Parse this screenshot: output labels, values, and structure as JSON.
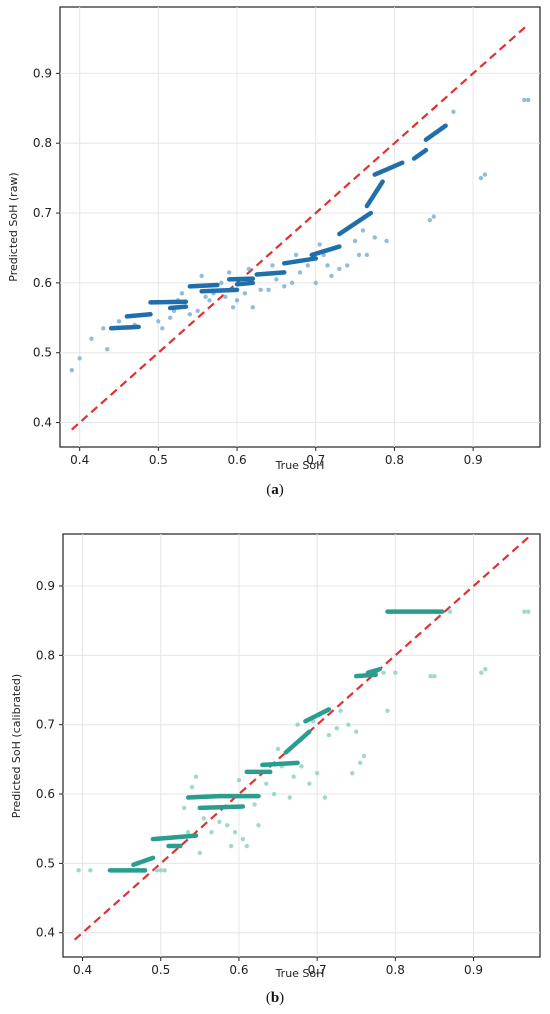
{
  "chart_data": [
    {
      "type": "scatter",
      "panel": "a",
      "caption_label": "a",
      "xlabel": "True SoH",
      "ylabel": "Predicted SoH (raw)",
      "xlim": [
        0.375,
        0.985
      ],
      "ylim": [
        0.365,
        0.995
      ],
      "xticks": [
        0.4,
        0.5,
        0.6,
        0.7,
        0.8,
        0.9
      ],
      "yticks": [
        0.4,
        0.5,
        0.6,
        0.7,
        0.8,
        0.9
      ],
      "grid": true,
      "point_color": "#1f6fad",
      "point_color_light": "#7fb0d6",
      "reference_line": {
        "color": "#e03030",
        "style": "dashed",
        "from": [
          0.39,
          0.39
        ],
        "to": [
          0.97,
          0.97
        ]
      },
      "trend_segments": [
        {
          "x": [
            0.44,
            0.475
          ],
          "y": [
            0.535,
            0.537
          ]
        },
        {
          "x": [
            0.46,
            0.49
          ],
          "y": [
            0.552,
            0.555
          ]
        },
        {
          "x": [
            0.49,
            0.535
          ],
          "y": [
            0.572,
            0.573
          ]
        },
        {
          "x": [
            0.515,
            0.535
          ],
          "y": [
            0.564,
            0.566
          ]
        },
        {
          "x": [
            0.54,
            0.575
          ],
          "y": [
            0.595,
            0.597
          ]
        },
        {
          "x": [
            0.555,
            0.6
          ],
          "y": [
            0.588,
            0.59
          ]
        },
        {
          "x": [
            0.59,
            0.62
          ],
          "y": [
            0.605,
            0.606
          ]
        },
        {
          "x": [
            0.6,
            0.62
          ],
          "y": [
            0.598,
            0.6
          ]
        },
        {
          "x": [
            0.625,
            0.66
          ],
          "y": [
            0.612,
            0.615
          ]
        },
        {
          "x": [
            0.66,
            0.7
          ],
          "y": [
            0.628,
            0.635
          ]
        },
        {
          "x": [
            0.695,
            0.73
          ],
          "y": [
            0.64,
            0.652
          ]
        },
        {
          "x": [
            0.73,
            0.77
          ],
          "y": [
            0.67,
            0.7
          ]
        },
        {
          "x": [
            0.765,
            0.785
          ],
          "y": [
            0.71,
            0.745
          ]
        },
        {
          "x": [
            0.775,
            0.81
          ],
          "y": [
            0.755,
            0.772
          ]
        },
        {
          "x": [
            0.825,
            0.84
          ],
          "y": [
            0.778,
            0.79
          ]
        },
        {
          "x": [
            0.84,
            0.865
          ],
          "y": [
            0.805,
            0.825
          ]
        }
      ],
      "points": [
        [
          0.39,
          0.475
        ],
        [
          0.4,
          0.492
        ],
        [
          0.415,
          0.52
        ],
        [
          0.43,
          0.535
        ],
        [
          0.435,
          0.505
        ],
        [
          0.45,
          0.545
        ],
        [
          0.47,
          0.54
        ],
        [
          0.5,
          0.545
        ],
        [
          0.505,
          0.535
        ],
        [
          0.515,
          0.55
        ],
        [
          0.52,
          0.56
        ],
        [
          0.525,
          0.575
        ],
        [
          0.53,
          0.585
        ],
        [
          0.54,
          0.555
        ],
        [
          0.55,
          0.56
        ],
        [
          0.555,
          0.61
        ],
        [
          0.56,
          0.58
        ],
        [
          0.565,
          0.575
        ],
        [
          0.57,
          0.585
        ],
        [
          0.58,
          0.6
        ],
        [
          0.585,
          0.58
        ],
        [
          0.59,
          0.615
        ],
        [
          0.595,
          0.565
        ],
        [
          0.6,
          0.575
        ],
        [
          0.61,
          0.585
        ],
        [
          0.615,
          0.62
        ],
        [
          0.62,
          0.565
        ],
        [
          0.63,
          0.59
        ],
        [
          0.64,
          0.59
        ],
        [
          0.645,
          0.625
        ],
        [
          0.65,
          0.605
        ],
        [
          0.66,
          0.595
        ],
        [
          0.67,
          0.6
        ],
        [
          0.675,
          0.64
        ],
        [
          0.68,
          0.615
        ],
        [
          0.69,
          0.625
        ],
        [
          0.7,
          0.6
        ],
        [
          0.705,
          0.655
        ],
        [
          0.71,
          0.64
        ],
        [
          0.715,
          0.625
        ],
        [
          0.72,
          0.61
        ],
        [
          0.73,
          0.62
        ],
        [
          0.74,
          0.625
        ],
        [
          0.75,
          0.66
        ],
        [
          0.755,
          0.64
        ],
        [
          0.76,
          0.675
        ],
        [
          0.765,
          0.64
        ],
        [
          0.775,
          0.665
        ],
        [
          0.79,
          0.66
        ],
        [
          0.845,
          0.69
        ],
        [
          0.85,
          0.695
        ],
        [
          0.875,
          0.845
        ],
        [
          0.91,
          0.75
        ],
        [
          0.915,
          0.755
        ],
        [
          0.965,
          0.862
        ],
        [
          0.97,
          0.862
        ]
      ]
    },
    {
      "type": "scatter",
      "panel": "b",
      "caption_label": "b",
      "xlabel": "True SoH",
      "ylabel": "Predicted SoH (calibrated)",
      "xlim": [
        0.375,
        0.985
      ],
      "ylim": [
        0.365,
        0.975
      ],
      "xticks": [
        0.4,
        0.5,
        0.6,
        0.7,
        0.8,
        0.9
      ],
      "yticks": [
        0.4,
        0.5,
        0.6,
        0.7,
        0.8,
        0.9
      ],
      "grid": true,
      "point_color": "#2a9d8f",
      "point_color_light": "#8fd0c6",
      "reference_line": {
        "color": "#e03030",
        "style": "dashed",
        "from": [
          0.39,
          0.39
        ],
        "to": [
          0.97,
          0.97
        ]
      },
      "trend_segments": [
        {
          "x": [
            0.435,
            0.48
          ],
          "y": [
            0.49,
            0.49
          ]
        },
        {
          "x": [
            0.465,
            0.49
          ],
          "y": [
            0.498,
            0.508
          ]
        },
        {
          "x": [
            0.49,
            0.545
          ],
          "y": [
            0.535,
            0.54
          ]
        },
        {
          "x": [
            0.51,
            0.525
          ],
          "y": [
            0.525,
            0.525
          ]
        },
        {
          "x": [
            0.535,
            0.575
          ],
          "y": [
            0.595,
            0.597
          ]
        },
        {
          "x": [
            0.55,
            0.605
          ],
          "y": [
            0.58,
            0.582
          ]
        },
        {
          "x": [
            0.575,
            0.625
          ],
          "y": [
            0.597,
            0.597
          ]
        },
        {
          "x": [
            0.61,
            0.64
          ],
          "y": [
            0.632,
            0.632
          ]
        },
        {
          "x": [
            0.63,
            0.675
          ],
          "y": [
            0.642,
            0.645
          ]
        },
        {
          "x": [
            0.66,
            0.69
          ],
          "y": [
            0.66,
            0.69
          ]
        },
        {
          "x": [
            0.685,
            0.715
          ],
          "y": [
            0.705,
            0.722
          ]
        },
        {
          "x": [
            0.75,
            0.775
          ],
          "y": [
            0.77,
            0.772
          ]
        },
        {
          "x": [
            0.765,
            0.78
          ],
          "y": [
            0.775,
            0.78
          ]
        },
        {
          "x": [
            0.79,
            0.86
          ],
          "y": [
            0.863,
            0.863
          ]
        }
      ],
      "points": [
        [
          0.395,
          0.49
        ],
        [
          0.41,
          0.49
        ],
        [
          0.46,
          0.49
        ],
        [
          0.495,
          0.49
        ],
        [
          0.5,
          0.49
        ],
        [
          0.505,
          0.49
        ],
        [
          0.52,
          0.525
        ],
        [
          0.53,
          0.58
        ],
        [
          0.535,
          0.545
        ],
        [
          0.54,
          0.61
        ],
        [
          0.545,
          0.625
        ],
        [
          0.55,
          0.515
        ],
        [
          0.555,
          0.565
        ],
        [
          0.565,
          0.545
        ],
        [
          0.575,
          0.56
        ],
        [
          0.585,
          0.555
        ],
        [
          0.59,
          0.525
        ],
        [
          0.595,
          0.545
        ],
        [
          0.6,
          0.62
        ],
        [
          0.605,
          0.535
        ],
        [
          0.61,
          0.525
        ],
        [
          0.62,
          0.585
        ],
        [
          0.625,
          0.555
        ],
        [
          0.635,
          0.615
        ],
        [
          0.645,
          0.6
        ],
        [
          0.65,
          0.665
        ],
        [
          0.655,
          0.64
        ],
        [
          0.665,
          0.595
        ],
        [
          0.67,
          0.625
        ],
        [
          0.675,
          0.7
        ],
        [
          0.68,
          0.64
        ],
        [
          0.69,
          0.615
        ],
        [
          0.695,
          0.705
        ],
        [
          0.7,
          0.63
        ],
        [
          0.71,
          0.595
        ],
        [
          0.715,
          0.685
        ],
        [
          0.725,
          0.695
        ],
        [
          0.73,
          0.72
        ],
        [
          0.74,
          0.7
        ],
        [
          0.745,
          0.63
        ],
        [
          0.75,
          0.69
        ],
        [
          0.755,
          0.645
        ],
        [
          0.76,
          0.655
        ],
        [
          0.785,
          0.775
        ],
        [
          0.79,
          0.72
        ],
        [
          0.8,
          0.775
        ],
        [
          0.845,
          0.77
        ],
        [
          0.85,
          0.77
        ],
        [
          0.87,
          0.863
        ],
        [
          0.91,
          0.775
        ],
        [
          0.915,
          0.78
        ],
        [
          0.965,
          0.863
        ],
        [
          0.97,
          0.863
        ]
      ]
    }
  ]
}
